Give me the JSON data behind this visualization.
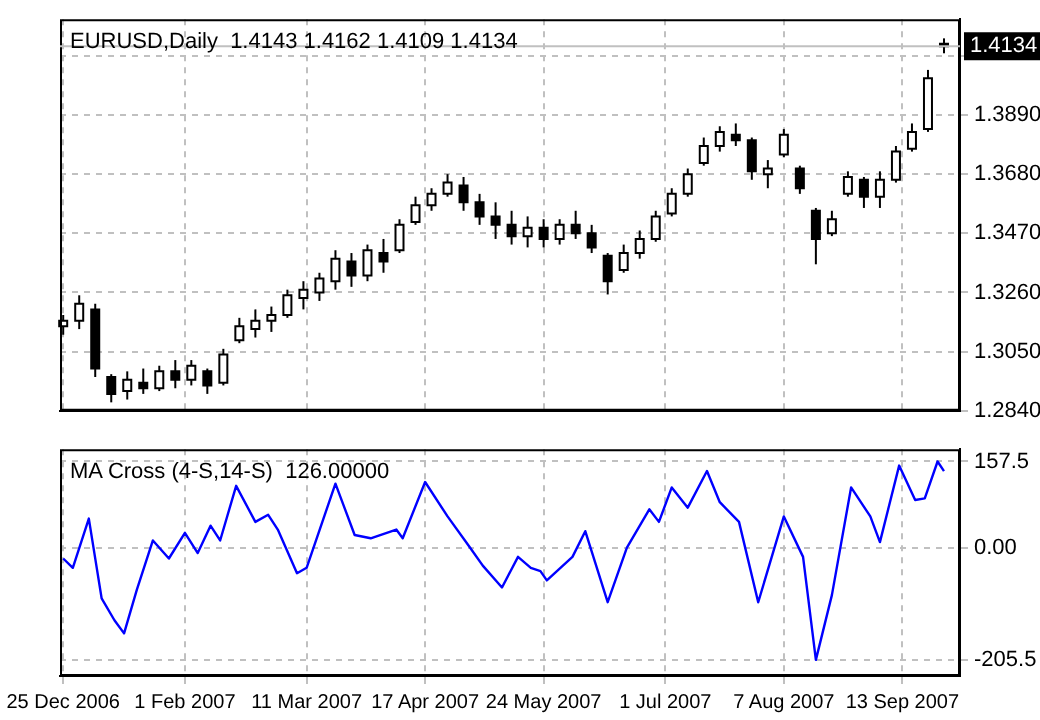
{
  "chart_data": [
    {
      "type": "candlestick",
      "title": "EURUSD,Daily  1.4143 1.4162 1.4109 1.4134",
      "colors": [
        "#ffffff",
        "#ffffff",
        "#000000",
        "#000000",
        "#ffffff",
        "#000000",
        "#ffffff",
        "#000000",
        "#ffffff",
        "#000000",
        "#ffffff",
        "#ffffff",
        "#ffffff",
        "#ffffff",
        "#ffffff",
        "#ffffff",
        "#ffffff",
        "#ffffff",
        "#000000",
        "#ffffff",
        "#000000",
        "#ffffff",
        "#ffffff",
        "#ffffff",
        "#ffffff",
        "#000000",
        "#000000",
        "#000000",
        "#000000",
        "#ffffff",
        "#000000",
        "#ffffff",
        "#000000",
        "#000000",
        "#000000",
        "#ffffff",
        "#ffffff",
        "#ffffff",
        "#ffffff",
        "#ffffff",
        "#ffffff",
        "#ffffff",
        "#000000",
        "#000000",
        "#ffffff",
        "#ffffff",
        "#000000",
        "#000000",
        "#ffffff",
        "#ffffff",
        "#000000",
        "#ffffff",
        "#ffffff",
        "#ffffff",
        "#ffffff",
        "#000000"
      ],
      "x": [
        "2006-12-25",
        "2006-12-30",
        "2007-01-04",
        "2007-01-09",
        "2007-01-14",
        "2007-01-19",
        "2007-01-24",
        "2007-01-29",
        "2007-02-03",
        "2007-02-08",
        "2007-02-13",
        "2007-02-18",
        "2007-02-23",
        "2007-02-28",
        "2007-03-05",
        "2007-03-10",
        "2007-03-15",
        "2007-03-20",
        "2007-03-25",
        "2007-03-30",
        "2007-04-04",
        "2007-04-09",
        "2007-04-14",
        "2007-04-19",
        "2007-04-24",
        "2007-04-29",
        "2007-05-04",
        "2007-05-09",
        "2007-05-14",
        "2007-05-19",
        "2007-05-24",
        "2007-05-29",
        "2007-06-03",
        "2007-06-08",
        "2007-06-13",
        "2007-06-18",
        "2007-06-23",
        "2007-06-28",
        "2007-07-03",
        "2007-07-08",
        "2007-07-13",
        "2007-07-18",
        "2007-07-23",
        "2007-07-28",
        "2007-08-02",
        "2007-08-07",
        "2007-08-12",
        "2007-08-17",
        "2007-08-22",
        "2007-08-27",
        "2007-09-01",
        "2007-09-06",
        "2007-09-11",
        "2007-09-16",
        "2007-09-21",
        "2007-09-26"
      ],
      "ohlc": [
        [
          1.314,
          1.318,
          1.311,
          1.316
        ],
        [
          1.316,
          1.325,
          1.313,
          1.322
        ],
        [
          1.32,
          1.322,
          1.296,
          1.299
        ],
        [
          1.296,
          1.297,
          1.287,
          1.29
        ],
        [
          1.291,
          1.298,
          1.288,
          1.295
        ],
        [
          1.294,
          1.299,
          1.29,
          1.292
        ],
        [
          1.292,
          1.3,
          1.291,
          1.298
        ],
        [
          1.298,
          1.302,
          1.292,
          1.295
        ],
        [
          1.295,
          1.302,
          1.293,
          1.3
        ],
        [
          1.298,
          1.299,
          1.29,
          1.293
        ],
        [
          1.294,
          1.306,
          1.293,
          1.304
        ],
        [
          1.309,
          1.317,
          1.308,
          1.314
        ],
        [
          1.313,
          1.32,
          1.31,
          1.316
        ],
        [
          1.316,
          1.321,
          1.312,
          1.318
        ],
        [
          1.318,
          1.327,
          1.317,
          1.325
        ],
        [
          1.324,
          1.33,
          1.32,
          1.327
        ],
        [
          1.326,
          1.333,
          1.323,
          1.331
        ],
        [
          1.33,
          1.341,
          1.327,
          1.338
        ],
        [
          1.337,
          1.34,
          1.328,
          1.332
        ],
        [
          1.332,
          1.343,
          1.33,
          1.341
        ],
        [
          1.34,
          1.345,
          1.333,
          1.337
        ],
        [
          1.341,
          1.352,
          1.34,
          1.35
        ],
        [
          1.351,
          1.36,
          1.35,
          1.357
        ],
        [
          1.357,
          1.363,
          1.355,
          1.361
        ],
        [
          1.361,
          1.368,
          1.36,
          1.365
        ],
        [
          1.364,
          1.367,
          1.355,
          1.358
        ],
        [
          1.358,
          1.361,
          1.35,
          1.353
        ],
        [
          1.353,
          1.358,
          1.345,
          1.35
        ],
        [
          1.35,
          1.355,
          1.343,
          1.346
        ],
        [
          1.346,
          1.353,
          1.342,
          1.349
        ],
        [
          1.349,
          1.352,
          1.342,
          1.345
        ],
        [
          1.345,
          1.352,
          1.343,
          1.35
        ],
        [
          1.35,
          1.355,
          1.345,
          1.347
        ],
        [
          1.347,
          1.35,
          1.34,
          1.342
        ],
        [
          1.339,
          1.34,
          1.3253,
          1.33
        ],
        [
          1.334,
          1.343,
          1.333,
          1.34
        ],
        [
          1.34,
          1.348,
          1.338,
          1.345
        ],
        [
          1.345,
          1.355,
          1.344,
          1.353
        ],
        [
          1.354,
          1.363,
          1.353,
          1.361
        ],
        [
          1.361,
          1.37,
          1.36,
          1.368
        ],
        [
          1.372,
          1.381,
          1.371,
          1.378
        ],
        [
          1.378,
          1.385,
          1.376,
          1.383
        ],
        [
          1.382,
          1.386,
          1.378,
          1.38
        ],
        [
          1.38,
          1.381,
          1.366,
          1.369
        ],
        [
          1.368,
          1.373,
          1.363,
          1.37
        ],
        [
          1.375,
          1.384,
          1.374,
          1.382
        ],
        [
          1.37,
          1.371,
          1.361,
          1.363
        ],
        [
          1.355,
          1.356,
          1.336,
          1.345
        ],
        [
          1.347,
          1.355,
          1.346,
          1.352
        ],
        [
          1.361,
          1.369,
          1.36,
          1.367
        ],
        [
          1.366,
          1.367,
          1.356,
          1.36
        ],
        [
          1.36,
          1.369,
          1.356,
          1.366
        ],
        [
          1.366,
          1.378,
          1.365,
          1.376
        ],
        [
          1.377,
          1.386,
          1.376,
          1.383
        ],
        [
          1.384,
          1.405,
          1.383,
          1.402
        ],
        [
          1.4143,
          1.4162,
          1.4109,
          1.4134
        ]
      ],
      "xlim": [
        "2006-12-24",
        "2007-10-01"
      ],
      "xticks": [
        {
          "value": "2006-12-25",
          "label": null
        },
        {
          "value": "2007-02-01",
          "label": null
        },
        {
          "value": "2007-03-11",
          "label": null
        },
        {
          "value": "2007-04-17",
          "label": null
        },
        {
          "value": "2007-05-24",
          "label": null
        },
        {
          "value": "2007-07-01",
          "label": null
        },
        {
          "value": "2007-08-07",
          "label": null
        },
        {
          "value": "2007-09-13",
          "label": null
        }
      ],
      "ylim": [
        1.284,
        1.423
      ],
      "yticks": [
        {
          "value": 1.284,
          "label": "1.2840"
        },
        {
          "value": 1.305,
          "label": "1.3050"
        },
        {
          "value": 1.326,
          "label": "1.3260"
        },
        {
          "value": 1.347,
          "label": "1.3470"
        },
        {
          "value": 1.368,
          "label": "1.3680"
        },
        {
          "value": 1.389,
          "label": "1.3890"
        },
        {
          "value": 1.41,
          "label": null
        }
      ],
      "ref_lines": [
        {
          "axis": "y",
          "value": 1.4134,
          "label": "1.4134",
          "color": "#c0c0c0"
        }
      ],
      "grid": true,
      "tick_labels": "y"
    },
    {
      "type": "line",
      "title": "MA Cross (4-S,14-S)  126.00000",
      "marker": "none",
      "x": [
        "2006-12-25",
        "2006-12-28",
        "2007-01-02",
        "2007-01-06",
        "2007-01-10",
        "2007-01-13",
        "2007-01-17",
        "2007-01-22",
        "2007-01-27",
        "2007-02-01",
        "2007-02-05",
        "2007-02-09",
        "2007-02-12",
        "2007-02-17",
        "2007-02-23",
        "2007-02-27",
        "2007-03-02",
        "2007-03-08",
        "2007-03-11",
        "2007-03-20",
        "2007-03-26",
        "2007-03-31",
        "2007-04-08",
        "2007-04-10",
        "2007-04-17",
        "2007-04-24",
        "2007-05-01",
        "2007-05-05",
        "2007-05-11",
        "2007-05-16",
        "2007-05-20",
        "2007-05-23",
        "2007-05-25",
        "2007-06-02",
        "2007-06-06",
        "2007-06-13",
        "2007-06-19",
        "2007-06-26",
        "2007-06-29",
        "2007-07-03",
        "2007-07-08",
        "2007-07-14",
        "2007-07-18",
        "2007-07-24",
        "2007-07-30",
        "2007-08-07",
        "2007-08-13",
        "2007-08-17",
        "2007-08-22",
        "2007-08-28",
        "2007-09-03",
        "2007-09-06",
        "2007-09-12",
        "2007-09-17",
        "2007-09-20",
        "2007-09-24",
        "2007-09-26"
      ],
      "series": [
        {
          "color": "#0000ff",
          "values": [
            -20,
            -37,
            53,
            -93,
            -133,
            -157,
            -77,
            13,
            -20,
            27,
            -10,
            40,
            13,
            113,
            47,
            60,
            33,
            -47,
            -37,
            117,
            23,
            17,
            33,
            17,
            120,
            57,
            0,
            -33,
            -73,
            -17,
            -37,
            -43,
            -60,
            -17,
            30,
            -100,
            0,
            70,
            47,
            110,
            73,
            140,
            83,
            47,
            -100,
            57,
            -17,
            -205.5,
            -87,
            110,
            57,
            10,
            150,
            87,
            90,
            157.5,
            140
          ]
        }
      ],
      "xlim": [
        "2006-12-24",
        "2007-10-01"
      ],
      "xticks": [
        {
          "value": "2006-12-25",
          "label": "25 Dec 2006"
        },
        {
          "value": "2007-02-01",
          "label": "1 Feb 2007"
        },
        {
          "value": "2007-03-11",
          "label": "11 Mar 2007"
        },
        {
          "value": "2007-04-17",
          "label": "17 Apr 2007"
        },
        {
          "value": "2007-05-24",
          "label": "24 May 2007"
        },
        {
          "value": "2007-07-01",
          "label": "1 Jul 2007"
        },
        {
          "value": "2007-08-07",
          "label": "7 Aug 2007"
        },
        {
          "value": "2007-09-13",
          "label": "13 Sep 2007"
        }
      ],
      "ylim": [
        -235,
        180
      ],
      "yticks": [
        157.5,
        {
          "value": 0,
          "label": "0.00"
        },
        -205.5
      ],
      "grid": true
    }
  ]
}
